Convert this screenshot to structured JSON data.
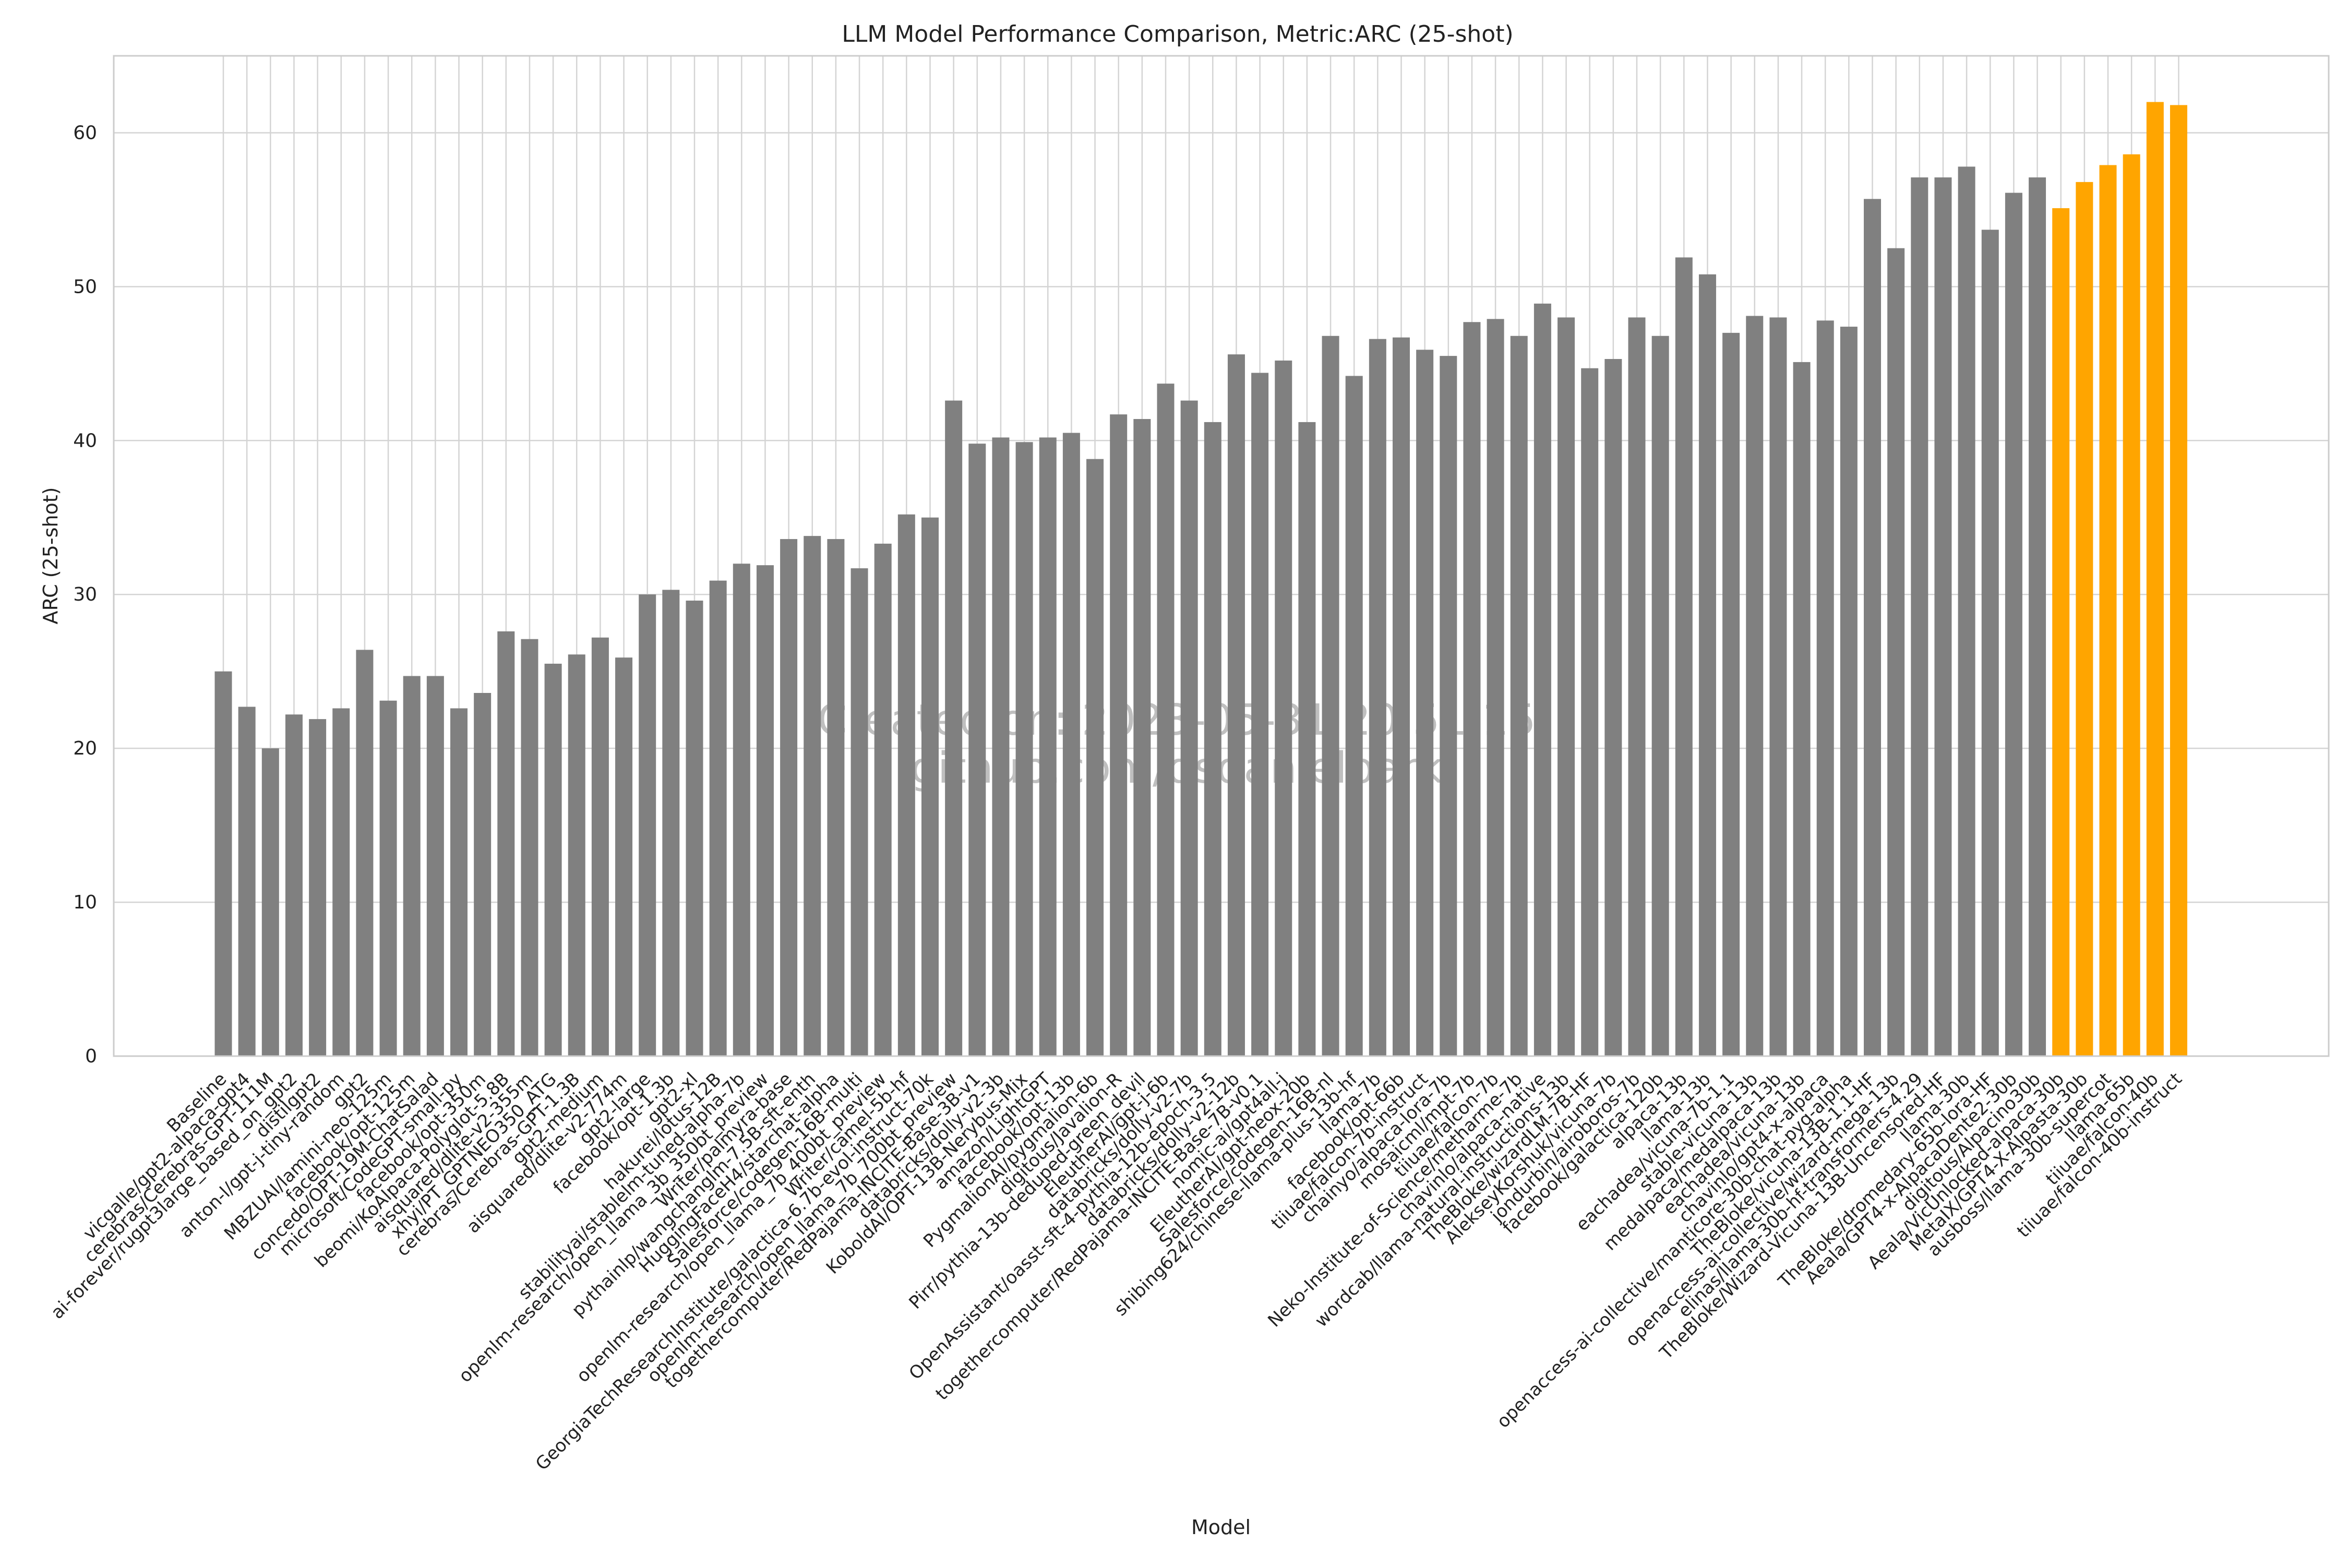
{
  "chart_data": {
    "type": "bar",
    "title": "LLM Model Performance Comparison, Metric:ARC (25-shot)",
    "xlabel": "Model",
    "ylabel": "ARC (25-shot)",
    "ylim": [
      0,
      65
    ],
    "yticks": [
      0,
      10,
      20,
      30,
      40,
      50,
      60
    ],
    "grid": true,
    "colors": {
      "default": "#808080",
      "highlight": "#FFA500"
    },
    "watermark": [
      "Created on: 2023-05-31 20:51:15",
      "github.com/dsdanielpark"
    ],
    "categories": [
      "Baseline",
      "vicgalle/gpt2-alpaca-gpt4",
      "cerebras/Cerebras-GPT-111M",
      "ai-forever/rugpt3large_based_on_gpt2",
      "distilgpt2",
      "anton-l/gpt-j-tiny-random",
      "gpt2",
      "MBZUAI/lamini-neo-125m",
      "facebook/opt-125m",
      "concedo/OPT-19M-ChatSalad",
      "microsoft/CodeGPT-small-py",
      "facebook/opt-350m",
      "beomi/KoAlpaca-Polyglot-5.8B",
      "aisquared/dlite-v2-355m",
      "xhyi/PT_GPTNEO350_ATG",
      "cerebras/Cerebras-GPT-1.3B",
      "gpt2-medium",
      "aisquared/dlite-v2-774m",
      "gpt2-large",
      "facebook/opt-1.3b",
      "gpt2-xl",
      "hakurei/lotus-12B",
      "stabilityai/stablelm-tuned-alpha-7b",
      "openlm-research/open_llama_3b_350bt_preview",
      "Writer/palmyra-base",
      "pythainlp/wangchanglm-7.5B-sft-enth",
      "HuggingFaceH4/starchat-alpha",
      "Salesforce/codegen-16B-multi",
      "openlm-research/open_llama_7b_400bt_preview",
      "Writer/camel-5b-hf",
      "GeorgiaTechResearchInstitute/galactica-6.7b-evol-instruct-70k",
      "openlm-research/open_llama_7b_700bt_preview",
      "togethercomputer/RedPajama-INCITE-Base-3B-v1",
      "databricks/dolly-v2-3b",
      "KoboldAI/OPT-13B-Nerybus-Mix",
      "amazon/LightGPT",
      "facebook/opt-13b",
      "PygmalionAI/pygmalion-6b",
      "digitous/Javalion-R",
      "Pirr/pythia-13b-deduped-green_devil",
      "EleutherAI/gpt-j-6b",
      "databricks/dolly-v2-7b",
      "OpenAssistant/oasst-sft-4-pythia-12b-epoch-3.5",
      "databricks/dolly-v2-12b",
      "togethercomputer/RedPajama-INCITE-Base-7B-v0.1",
      "nomic-ai/gpt4all-j",
      "EleutherAI/gpt-neox-20b",
      "Salesforce/codegen-16B-nl",
      "shibing624/chinese-llama-plus-13b-hf",
      "llama-7b",
      "facebook/opt-66b",
      "tiiuae/falcon-7b-instruct",
      "chainyo/alpaca-lora-7b",
      "mosaicml/mpt-7b",
      "tiiuae/falcon-7b",
      "Neko-Institute-of-Science/metharme-7b",
      "chavinlo/alpaca-native",
      "wordcab/llama-natural-instructions-13b",
      "TheBloke/wizardLM-7B-HF",
      "AlekseyKorshuk/vicuna-7b",
      "jondurbin/airoboros-7b",
      "facebook/galactica-120b",
      "alpaca-13b",
      "llama-13b",
      "eachadea/vicuna-7b-1.1",
      "stable-vicuna-13b",
      "medalpaca/medalpaca-13b",
      "eachadea/vicuna-13b",
      "chavinlo/gpt4-x-alpaca",
      "openaccess-ai-collective/manticore-30b-chat-pyg-alpha",
      "TheBloke/vicuna-13B-1.1-HF",
      "openaccess-ai-collective/wizard-mega-13b",
      "elinas/llama-30b-hf-transformers-4.29",
      "TheBloke/Wizard-Vicuna-13B-Uncensored-HF",
      "llama-30b",
      "TheBloke/dromedary-65b-lora-HF",
      "Aeala/GPT4-x-AlpacaDente2-30b",
      "digitous/Alpacino30b",
      "Aeala/VicUnlocked-alpaca-30b",
      "MetaIX/GPT4-X-Alpasta-30b",
      "ausboss/llama-30b-supercot",
      "llama-65b",
      "tiiuae/falcon-40b",
      "tiiuae/falcon-40b-instruct"
    ],
    "values": [
      25.0,
      22.7,
      20.0,
      22.2,
      21.9,
      22.6,
      26.4,
      23.1,
      24.7,
      24.7,
      22.6,
      23.6,
      27.6,
      27.1,
      25.5,
      26.1,
      27.2,
      25.9,
      30.0,
      30.3,
      29.6,
      30.9,
      32.0,
      31.9,
      33.6,
      33.8,
      33.6,
      31.7,
      33.3,
      35.2,
      35.0,
      42.6,
      39.8,
      40.2,
      39.9,
      40.2,
      40.5,
      38.8,
      41.7,
      41.4,
      43.7,
      42.6,
      41.2,
      45.6,
      44.4,
      45.2,
      41.2,
      46.8,
      44.2,
      46.6,
      46.7,
      45.9,
      45.5,
      47.7,
      47.9,
      46.8,
      48.9,
      48.0,
      44.7,
      45.3,
      48.0,
      46.8,
      51.9,
      50.8,
      47.0,
      48.1,
      48.0,
      45.1,
      47.8,
      47.4,
      55.7,
      52.5,
      57.1,
      57.1,
      57.8,
      53.7,
      56.1,
      57.1,
      55.1,
      56.8,
      57.9,
      58.6,
      62.0,
      61.8
    ],
    "highlight_from_index": 78
  }
}
